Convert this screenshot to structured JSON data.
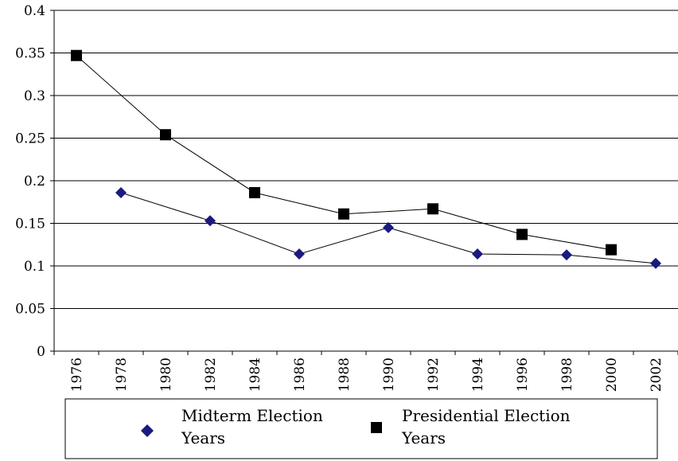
{
  "chart_data": {
    "type": "line",
    "title": "",
    "xlabel": "",
    "ylabel": "",
    "x": [
      "1976",
      "1978",
      "1980",
      "1982",
      "1984",
      "1986",
      "1988",
      "1990",
      "1992",
      "1994",
      "1996",
      "1998",
      "2000",
      "2002"
    ],
    "ylim": [
      0,
      0.4
    ],
    "yticks": [
      "0",
      "0.05",
      "0.1",
      "0.15",
      "0.2",
      "0.25",
      "0.3",
      "0.35",
      "0.4"
    ],
    "grid": "horizontal",
    "legend_position": "bottom",
    "series": [
      {
        "name": "Midterm Election Years",
        "marker": "diamond",
        "color": "#1a1a80",
        "points": [
          {
            "x": "1978",
            "y": 0.186
          },
          {
            "x": "1982",
            "y": 0.153
          },
          {
            "x": "1986",
            "y": 0.114
          },
          {
            "x": "1990",
            "y": 0.145
          },
          {
            "x": "1994",
            "y": 0.114
          },
          {
            "x": "1998",
            "y": 0.113
          },
          {
            "x": "2002",
            "y": 0.103
          }
        ]
      },
      {
        "name": "Presidential Election Years",
        "marker": "square",
        "color": "#000000",
        "points": [
          {
            "x": "1976",
            "y": 0.347
          },
          {
            "x": "1980",
            "y": 0.254
          },
          {
            "x": "1984",
            "y": 0.186
          },
          {
            "x": "1988",
            "y": 0.161
          },
          {
            "x": "1992",
            "y": 0.167
          },
          {
            "x": "1996",
            "y": 0.137
          },
          {
            "x": "2000",
            "y": 0.119
          }
        ]
      }
    ],
    "legend": {
      "midterm_line1": "Midterm Election",
      "midterm_line2": "Years",
      "presidential_line1": "Presidential Election",
      "presidential_line2": "Years"
    }
  }
}
